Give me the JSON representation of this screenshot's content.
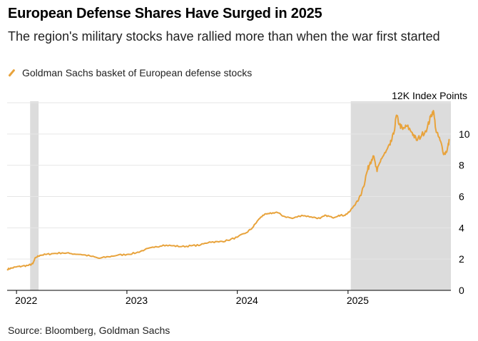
{
  "title": "European Defense Shares Have Surged in 2025",
  "subtitle": "The region's military stocks have rallied more than when the war first started",
  "source": "Source: Bloomberg, Goldman Sachs",
  "colors": {
    "line": "#e8a33c",
    "shade": "#dcdcdc",
    "grid": "#e6e6e6",
    "axis": "#000000"
  },
  "chart_data": {
    "type": "line",
    "title": "European Defense Shares Have Surged in 2025",
    "subtitle": "The region's military stocks have rallied more than when the war first started",
    "xlabel": "",
    "ylabel": "",
    "y_unit_label": "12K Index Points",
    "legend": [
      "Goldman Sachs basket of European defense stocks"
    ],
    "legend_position": "top-left",
    "grid": true,
    "xlim": [
      "2021-12-01",
      "2025-12-07"
    ],
    "ylim": [
      0,
      12
    ],
    "x_ticks": [
      {
        "label": "2022",
        "date": "2022-01-01"
      },
      {
        "label": "2023",
        "date": "2023-01-01"
      },
      {
        "label": "2024",
        "date": "2024-01-01"
      },
      {
        "label": "2025",
        "date": "2025-01-01"
      }
    ],
    "y_ticks": [
      {
        "label": "12K Index Points",
        "value": 12
      },
      {
        "label": "10",
        "value": 10
      },
      {
        "label": "8",
        "value": 8
      },
      {
        "label": "6",
        "value": 6
      },
      {
        "label": "4",
        "value": 4
      },
      {
        "label": "2",
        "value": 2
      },
      {
        "label": "0",
        "value": 0
      }
    ],
    "shaded_periods": [
      {
        "start": "2022-02-15",
        "end": "2022-03-15"
      },
      {
        "start": "2025-01-10",
        "end": "2025-12-07"
      }
    ],
    "series": [
      {
        "name": "Goldman Sachs basket of European defense stocks",
        "points": [
          [
            "2021-12-01",
            1.35
          ],
          [
            "2021-12-15",
            1.42
          ],
          [
            "2022-01-01",
            1.5
          ],
          [
            "2022-01-20",
            1.55
          ],
          [
            "2022-02-10",
            1.6
          ],
          [
            "2022-02-24",
            1.7
          ],
          [
            "2022-03-05",
            2.1
          ],
          [
            "2022-03-20",
            2.25
          ],
          [
            "2022-04-10",
            2.3
          ],
          [
            "2022-05-01",
            2.35
          ],
          [
            "2022-06-01",
            2.4
          ],
          [
            "2022-07-01",
            2.35
          ],
          [
            "2022-08-01",
            2.3
          ],
          [
            "2022-09-01",
            2.2
          ],
          [
            "2022-10-01",
            2.05
          ],
          [
            "2022-11-01",
            2.15
          ],
          [
            "2022-12-01",
            2.25
          ],
          [
            "2023-01-01",
            2.3
          ],
          [
            "2023-02-01",
            2.4
          ],
          [
            "2023-03-01",
            2.6
          ],
          [
            "2023-04-01",
            2.75
          ],
          [
            "2023-05-01",
            2.9
          ],
          [
            "2023-06-01",
            2.85
          ],
          [
            "2023-07-01",
            2.8
          ],
          [
            "2023-08-01",
            2.85
          ],
          [
            "2023-09-01",
            2.9
          ],
          [
            "2023-10-01",
            3.1
          ],
          [
            "2023-11-01",
            3.1
          ],
          [
            "2023-12-01",
            3.2
          ],
          [
            "2024-01-01",
            3.4
          ],
          [
            "2024-02-01",
            3.7
          ],
          [
            "2024-02-20",
            4.0
          ],
          [
            "2024-03-10",
            4.5
          ],
          [
            "2024-03-25",
            4.8
          ],
          [
            "2024-04-15",
            4.9
          ],
          [
            "2024-05-10",
            5.0
          ],
          [
            "2024-06-01",
            4.75
          ],
          [
            "2024-07-01",
            4.6
          ],
          [
            "2024-08-01",
            4.8
          ],
          [
            "2024-09-01",
            4.7
          ],
          [
            "2024-10-01",
            4.6
          ],
          [
            "2024-10-20",
            4.8
          ],
          [
            "2024-11-10",
            4.65
          ],
          [
            "2024-12-01",
            4.8
          ],
          [
            "2024-12-20",
            4.8
          ],
          [
            "2025-01-05",
            5.0
          ],
          [
            "2025-01-20",
            5.4
          ],
          [
            "2025-02-05",
            5.8
          ],
          [
            "2025-02-20",
            6.6
          ],
          [
            "2025-03-05",
            7.6
          ],
          [
            "2025-03-15",
            8.2
          ],
          [
            "2025-03-25",
            8.6
          ],
          [
            "2025-04-07",
            7.6
          ],
          [
            "2025-04-20",
            8.4
          ],
          [
            "2025-05-05",
            8.8
          ],
          [
            "2025-05-20",
            9.3
          ],
          [
            "2025-06-01",
            10.0
          ],
          [
            "2025-06-10",
            11.2
          ],
          [
            "2025-06-20",
            10.6
          ],
          [
            "2025-07-01",
            10.3
          ],
          [
            "2025-07-15",
            10.5
          ],
          [
            "2025-08-01",
            10.1
          ],
          [
            "2025-08-15",
            9.6
          ],
          [
            "2025-09-01",
            9.9
          ],
          [
            "2025-09-20",
            10.4
          ],
          [
            "2025-10-01",
            11.1
          ],
          [
            "2025-10-10",
            11.5
          ],
          [
            "2025-10-20",
            10.1
          ],
          [
            "2025-11-01",
            9.6
          ],
          [
            "2025-11-15",
            8.7
          ],
          [
            "2025-11-25",
            9.0
          ],
          [
            "2025-12-02",
            9.6
          ]
        ]
      }
    ]
  }
}
